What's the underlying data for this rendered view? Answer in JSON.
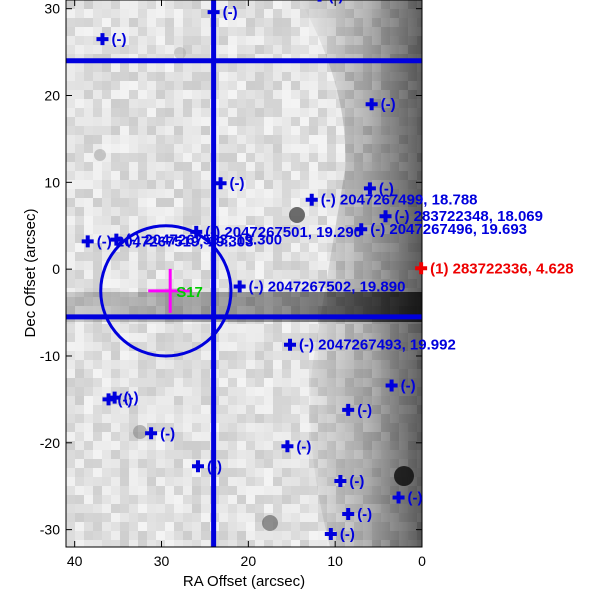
{
  "chart_data": {
    "type": "scatter",
    "xlabel": "RA Offset (arcsec)",
    "ylabel": "Dec Offset (arcsec)",
    "xlim": [
      41,
      0
    ],
    "ylim": [
      -32,
      31
    ],
    "xticks": [
      40,
      30,
      20,
      10,
      0
    ],
    "yticks": [
      30,
      20,
      10,
      0,
      -10,
      -20,
      -30
    ],
    "x_reversed": true,
    "grid": false,
    "colors": {
      "catalog": "#0000dd",
      "target": "#ee0000",
      "cross": "#ff00ff",
      "region_label": "#00cc00"
    },
    "background": "grayscale sky image",
    "lines": {
      "vertical_x": [
        24
      ],
      "horizontal_y": [
        24,
        -5.5
      ]
    },
    "circle": {
      "x": 29.5,
      "y": -2.5,
      "radius": 7.5
    },
    "cross": {
      "x": 29,
      "y": -2.5,
      "label": "S17"
    },
    "points": [
      {
        "x": 11.8,
        "y": 31.5,
        "label": "(-)"
      },
      {
        "x": 24.0,
        "y": 29.6,
        "label": "(-)"
      },
      {
        "x": 36.8,
        "y": 26.5,
        "label": "(-)"
      },
      {
        "x": 5.8,
        "y": 19.0,
        "label": "(-)"
      },
      {
        "x": 23.2,
        "y": 9.9,
        "label": "(-)"
      },
      {
        "x": 6.0,
        "y": 9.3,
        "label": "(-)"
      },
      {
        "x": 12.7,
        "y": 8.0,
        "label": "(-) 2047267499, 18.788"
      },
      {
        "x": 4.2,
        "y": 6.1,
        "label": "(-) 283722348, 18.069"
      },
      {
        "x": 7.0,
        "y": 4.6,
        "label": "(-) 2047267496, 19.693"
      },
      {
        "x": 26.0,
        "y": 4.3,
        "label": "(-) 2047267501, 19.290"
      },
      {
        "x": 35.2,
        "y": 3.4,
        "label": "(-) 2047267503, 19.300"
      },
      {
        "x": 38.5,
        "y": 3.2,
        "label": "(-) 2047267519, 19.303"
      },
      {
        "x": 21.0,
        "y": -2.0,
        "label": "(-) 2047267502, 19.890"
      },
      {
        "x": 15.2,
        "y": -8.7,
        "label": "(-) 2047267493, 19.992"
      },
      {
        "x": 3.5,
        "y": -13.4,
        "label": "(-)"
      },
      {
        "x": 36.1,
        "y": -15.0,
        "label": "(-)"
      },
      {
        "x": 35.4,
        "y": -14.8,
        "label": "(-)"
      },
      {
        "x": 8.5,
        "y": -16.2,
        "label": "(-)"
      },
      {
        "x": 31.2,
        "y": -18.9,
        "label": "(-)"
      },
      {
        "x": 15.5,
        "y": -20.4,
        "label": "(-)"
      },
      {
        "x": 25.8,
        "y": -22.7,
        "label": "(-)"
      },
      {
        "x": 9.4,
        "y": -24.4,
        "label": "(-)"
      },
      {
        "x": 2.7,
        "y": -26.3,
        "label": "(-)"
      },
      {
        "x": 8.5,
        "y": -28.2,
        "label": "(-)"
      },
      {
        "x": 10.5,
        "y": -30.5,
        "label": "(-)"
      }
    ],
    "target": {
      "x": 0.1,
      "y": 0.1,
      "label": "(1) 283722336, 4.628"
    }
  }
}
